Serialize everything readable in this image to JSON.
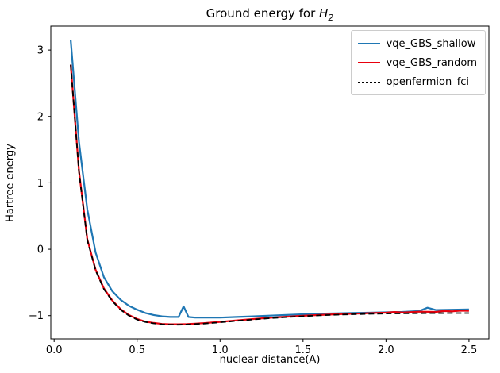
{
  "title": {
    "prefix": "Ground energy for ",
    "symbol": "H",
    "subscript": "2"
  },
  "chart_data": {
    "type": "line",
    "title": "Ground energy for H_2",
    "xlabel": "nuclear distance(A)",
    "ylabel": "Hartree energy",
    "xlim": [
      -0.02,
      2.62
    ],
    "ylim": [
      -1.35,
      3.36
    ],
    "xticks": [
      0.0,
      0.5,
      1.0,
      1.5,
      2.0,
      2.5
    ],
    "xtick_labels": [
      "0.0",
      "0.5",
      "1.0",
      "1.5",
      "2.0",
      "2.5"
    ],
    "yticks": [
      -1,
      0,
      1,
      2,
      3
    ],
    "ytick_labels": [
      "−1",
      "0",
      "1",
      "2",
      "3"
    ],
    "grid": false,
    "legend_position": "upper right",
    "series": [
      {
        "name": "vqe_GBS_shallow",
        "color": "#1f77b4",
        "style": "solid",
        "x": [
          0.1,
          0.15,
          0.2,
          0.25,
          0.3,
          0.35,
          0.4,
          0.45,
          0.5,
          0.55,
          0.6,
          0.65,
          0.7,
          0.75,
          0.78,
          0.81,
          0.85,
          0.9,
          0.95,
          1.0,
          1.1,
          1.2,
          1.3,
          1.4,
          1.5,
          1.6,
          1.7,
          1.8,
          1.9,
          2.0,
          2.1,
          2.2,
          2.25,
          2.3,
          2.4,
          2.5
        ],
        "y": [
          3.15,
          1.62,
          0.6,
          -0.05,
          -0.42,
          -0.63,
          -0.76,
          -0.85,
          -0.91,
          -0.96,
          -0.99,
          -1.01,
          -1.02,
          -1.02,
          -0.86,
          -1.02,
          -1.03,
          -1.03,
          -1.03,
          -1.03,
          -1.02,
          -1.01,
          -1.0,
          -0.99,
          -0.98,
          -0.97,
          -0.966,
          -0.96,
          -0.955,
          -0.95,
          -0.944,
          -0.93,
          -0.88,
          -0.915,
          -0.91,
          -0.905
        ]
      },
      {
        "name": "vqe_GBS_random",
        "color": "#e8000d",
        "style": "solid",
        "x": [
          0.1,
          0.15,
          0.2,
          0.25,
          0.3,
          0.35,
          0.4,
          0.45,
          0.5,
          0.55,
          0.6,
          0.65,
          0.7,
          0.75,
          0.8,
          0.85,
          0.9,
          0.95,
          1.0,
          1.1,
          1.2,
          1.3,
          1.4,
          1.5,
          1.6,
          1.7,
          1.8,
          1.9,
          1.95,
          2.0,
          2.05,
          2.1,
          2.2,
          2.3,
          2.35,
          2.4,
          2.45,
          2.5
        ],
        "y": [
          2.78,
          1.18,
          0.15,
          -0.31,
          -0.59,
          -0.77,
          -0.9,
          -0.99,
          -1.05,
          -1.09,
          -1.11,
          -1.125,
          -1.13,
          -1.13,
          -1.128,
          -1.12,
          -1.113,
          -1.104,
          -1.094,
          -1.072,
          -1.051,
          -1.032,
          -1.016,
          -1.002,
          -0.99,
          -0.98,
          -0.971,
          -0.963,
          -0.958,
          -0.955,
          -0.945,
          -0.952,
          -0.94,
          -0.944,
          -0.93,
          -0.935,
          -0.924,
          -0.928
        ]
      },
      {
        "name": "openfermion_fci",
        "color": "#000000",
        "style": "dashed",
        "x": [
          0.1,
          0.15,
          0.2,
          0.25,
          0.3,
          0.35,
          0.4,
          0.45,
          0.5,
          0.55,
          0.6,
          0.65,
          0.7,
          0.75,
          0.8,
          0.85,
          0.9,
          0.95,
          1.0,
          1.1,
          1.2,
          1.3,
          1.4,
          1.5,
          1.6,
          1.7,
          1.8,
          1.9,
          2.0,
          2.1,
          2.2,
          2.3,
          2.4,
          2.5
        ],
        "y": [
          2.78,
          1.17,
          0.14,
          -0.32,
          -0.6,
          -0.78,
          -0.91,
          -1.0,
          -1.06,
          -1.095,
          -1.117,
          -1.13,
          -1.136,
          -1.137,
          -1.134,
          -1.127,
          -1.12,
          -1.111,
          -1.101,
          -1.079,
          -1.058,
          -1.039,
          -1.023,
          -1.009,
          -0.996,
          -0.987,
          -0.979,
          -0.974,
          -0.969,
          -0.966,
          -0.964,
          -0.963,
          -0.962,
          -0.962
        ]
      }
    ]
  }
}
